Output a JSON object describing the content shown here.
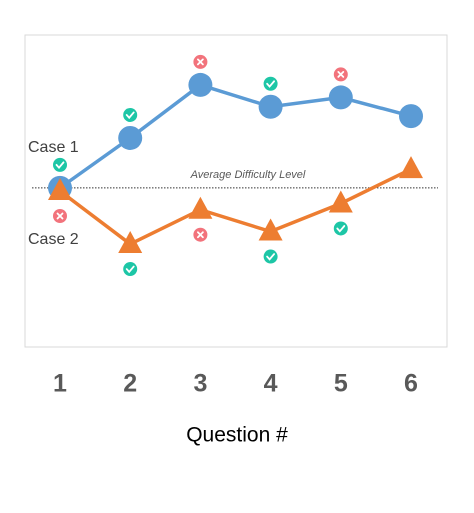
{
  "chart_data": {
    "type": "line",
    "categories": [
      "1",
      "2",
      "3",
      "4",
      "5",
      "6"
    ],
    "xlabel": "Question #",
    "ylim": [
      0,
      10
    ],
    "series": [
      {
        "name": "Case 1",
        "color": "#5b9bd5",
        "marker": "circle",
        "values": [
          5.1,
          6.7,
          8.4,
          7.7,
          8.0,
          7.4
        ],
        "correct": [
          true,
          true,
          false,
          true,
          false,
          null
        ]
      },
      {
        "name": "Case 2",
        "color": "#ed7d31",
        "marker": "triangle",
        "values": [
          5.0,
          3.3,
          4.4,
          3.7,
          4.6,
          5.7
        ],
        "correct": [
          false,
          true,
          false,
          true,
          true,
          null
        ]
      }
    ],
    "reference_line": {
      "text": "Average Difficulty Level",
      "value": 5.1
    }
  }
}
